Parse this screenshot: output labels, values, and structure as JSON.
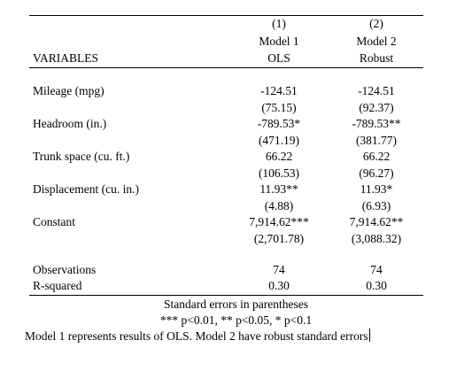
{
  "header": {
    "col_numbers": [
      "(1)",
      "(2)"
    ],
    "model_names": [
      "Model 1",
      "Model 2"
    ],
    "methods": [
      "OLS",
      "Robust"
    ],
    "variables_label": "VARIABLES"
  },
  "rows": [
    {
      "label": "Mileage (mpg)",
      "m1": "-124.51",
      "m2": "-124.51",
      "se1": "(75.15)",
      "se2": "(92.37)"
    },
    {
      "label": "Headroom (in.)",
      "m1": "-789.53*",
      "m2": "-789.53**",
      "se1": "(471.19)",
      "se2": "(381.77)"
    },
    {
      "label": "Trunk space (cu. ft.)",
      "m1": "66.22",
      "m2": "66.22",
      "se1": "(106.53)",
      "se2": "(96.27)"
    },
    {
      "label": "Displacement (cu. in.)",
      "m1": "11.93**",
      "m2": "11.93*",
      "se1": "(4.88)",
      "se2": "(6.93)"
    },
    {
      "label": "Constant",
      "m1": "7,914.62***",
      "m2": "7,914.62**",
      "se1": "(2,701.78)",
      "se2": "(3,088.32)"
    }
  ],
  "stats": [
    {
      "label": "Observations",
      "m1": "74",
      "m2": "74"
    },
    {
      "label": "R-squared",
      "m1": "0.30",
      "m2": "0.30"
    }
  ],
  "notes": {
    "line1": "Standard errors in parentheses",
    "line2": "*** p<0.01, ** p<0.05, * p<0.1",
    "line3": "Model 1 represents results of OLS. Model 2 have robust standard errors"
  }
}
